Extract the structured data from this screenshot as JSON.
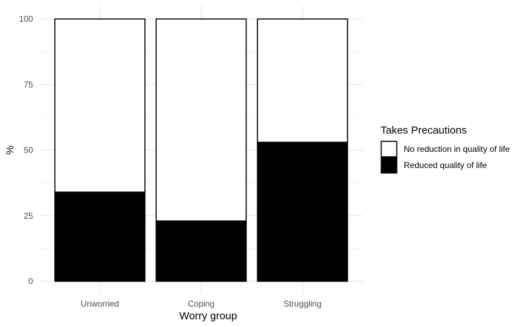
{
  "chart_data": {
    "type": "bar",
    "stacked": true,
    "percent": true,
    "categories": [
      "Unworried",
      "Coping",
      "Struggling"
    ],
    "series": [
      {
        "name": "Reduced quality of life",
        "values": [
          34,
          23,
          53
        ],
        "color": "#000000"
      },
      {
        "name": "No reduction in quality of life",
        "values": [
          66,
          77,
          47
        ],
        "color": "#ffffff"
      }
    ],
    "xlabel": "Worry group",
    "ylabel": "%",
    "ylim": [
      0,
      100
    ],
    "yticks": [
      0,
      25,
      50,
      75,
      100
    ],
    "grid": true,
    "legend": {
      "title": "Takes Precautions",
      "position": "right",
      "entries": [
        "No reduction in quality of life",
        "Reduced quality of life"
      ]
    }
  }
}
